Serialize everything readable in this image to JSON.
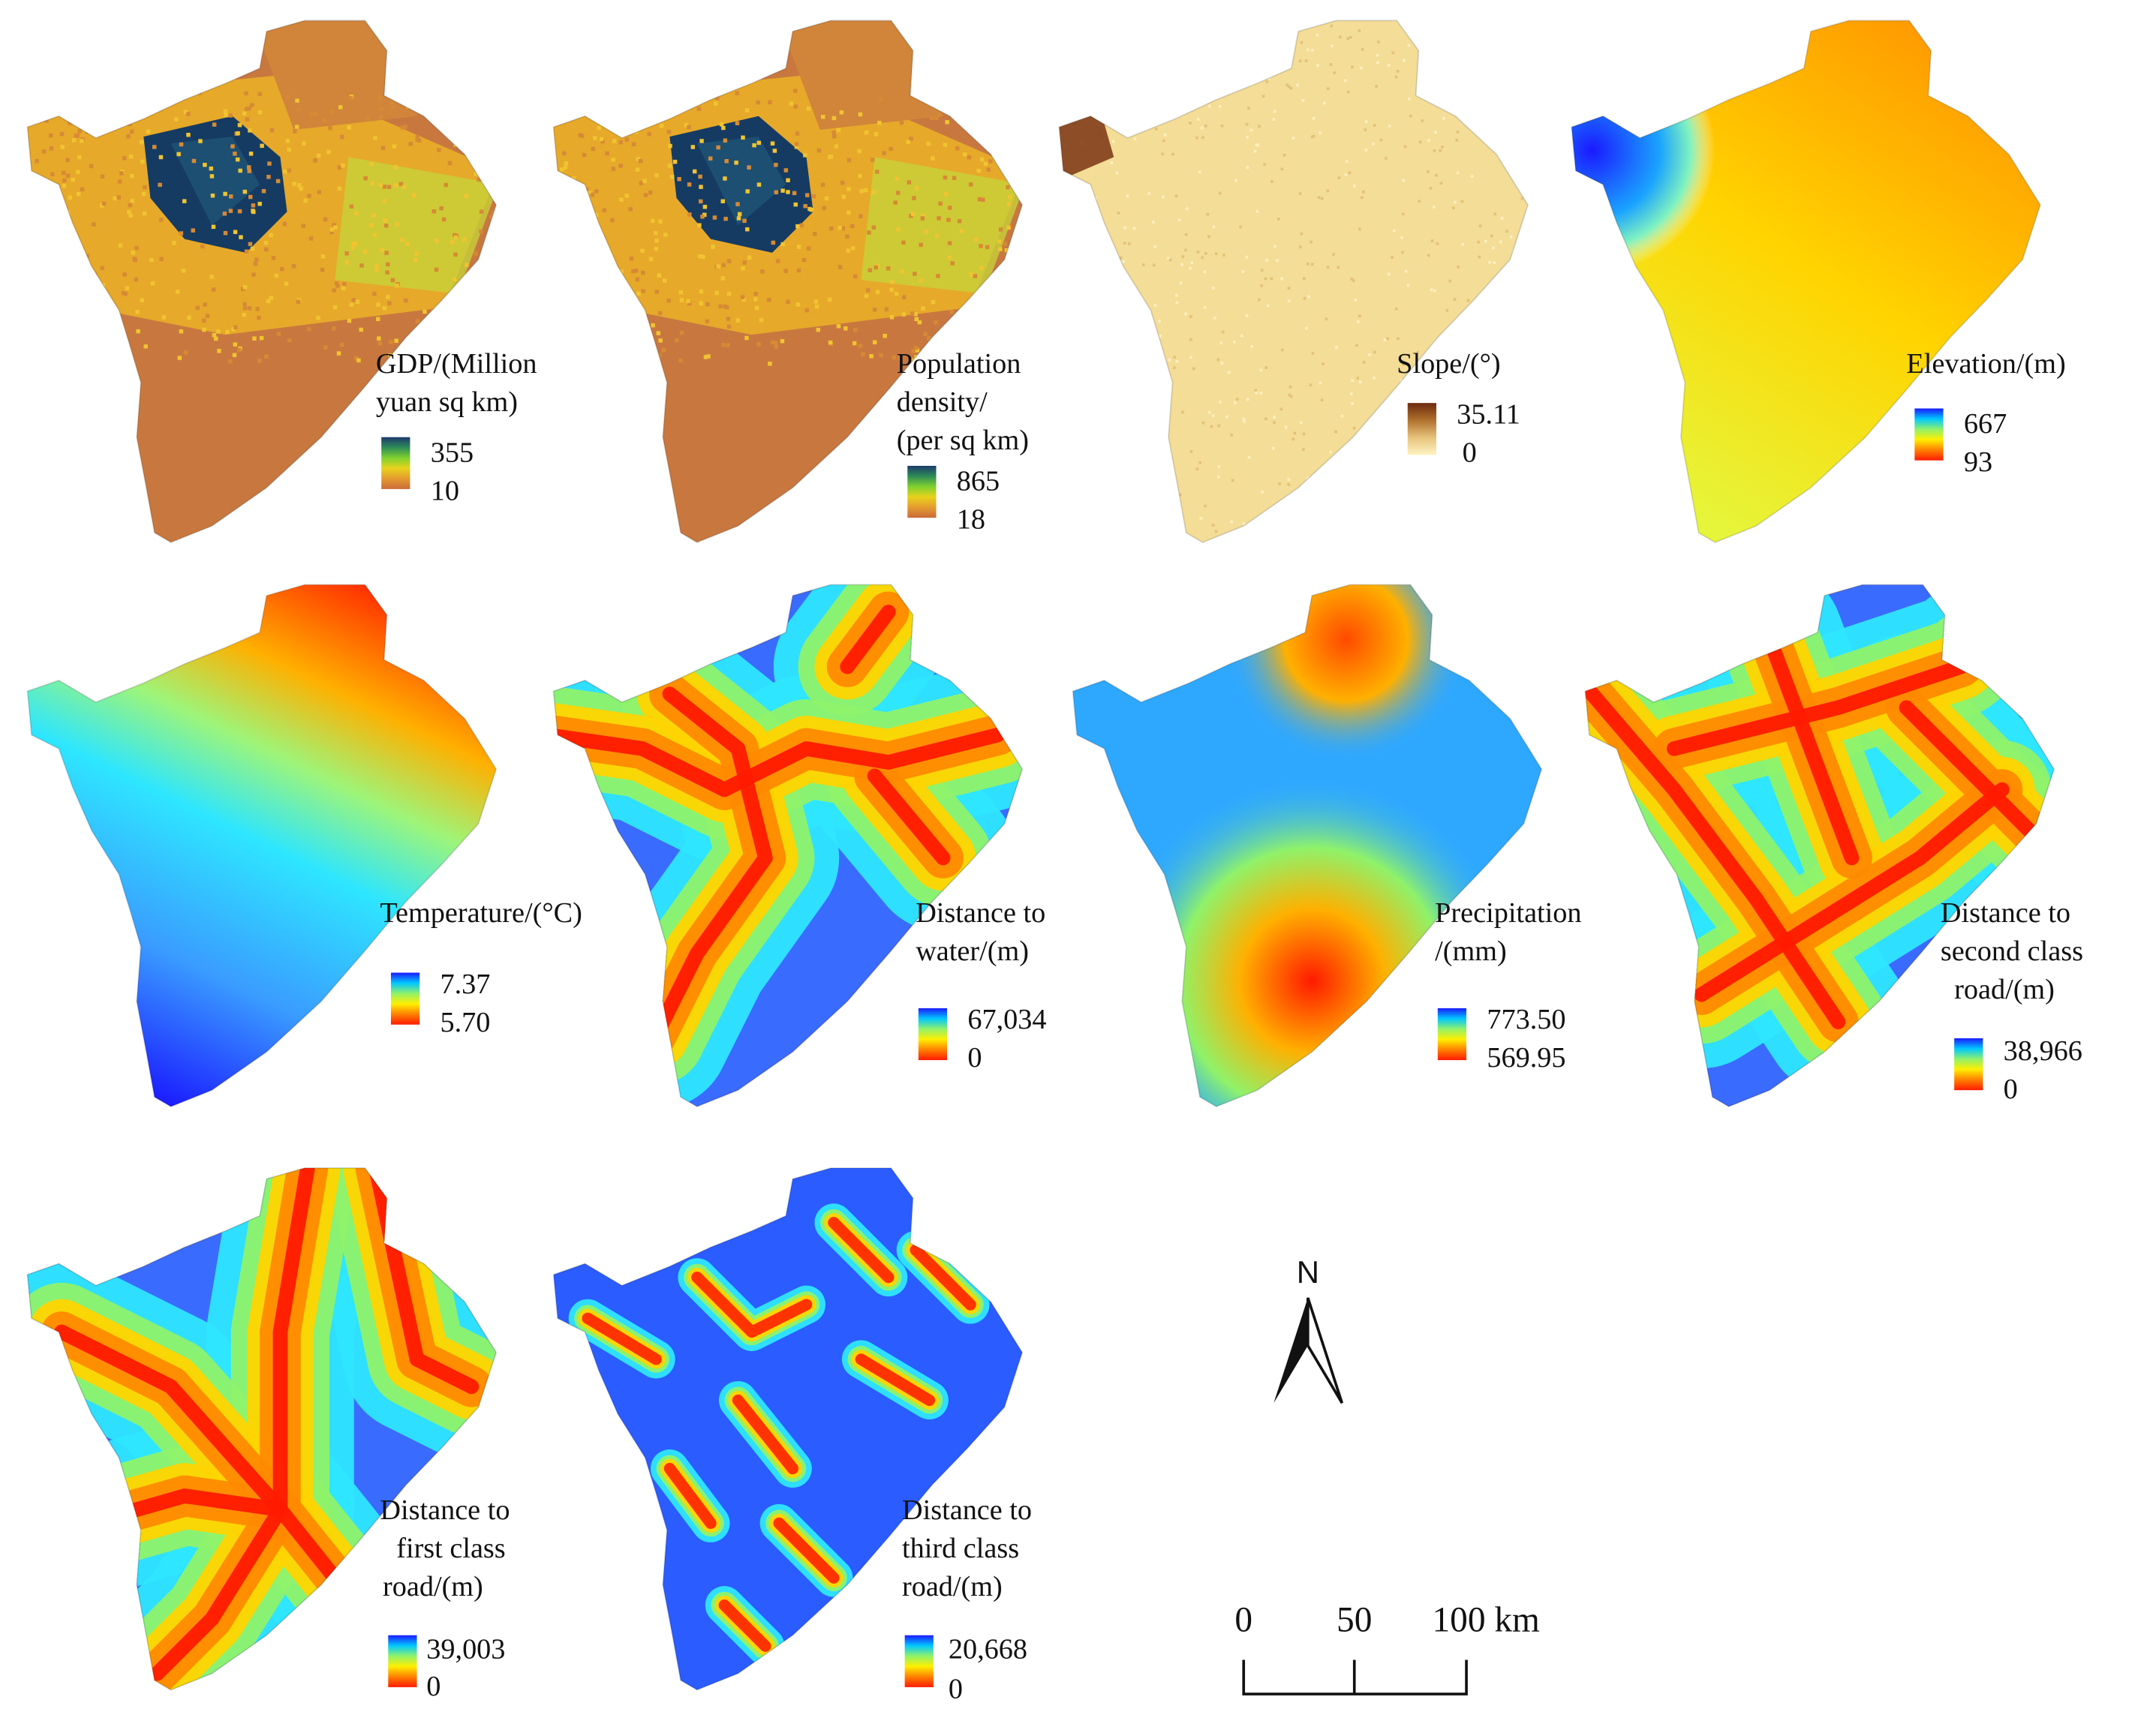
{
  "panels": [
    {
      "id": "gdp",
      "title_lines": [
        "GDP/(Million",
        "yuan sq km)"
      ],
      "max_label": "355",
      "min_label": "10",
      "ramp": [
        "#1b3a6b",
        "#2e8b57",
        "#7fd12f",
        "#e8d21c",
        "#e49b2f",
        "#c96a3a"
      ],
      "style": "raster"
    },
    {
      "id": "population",
      "title_lines": [
        "Population",
        "density/",
        "(per sq km)"
      ],
      "max_label": "865",
      "min_label": "18",
      "ramp": [
        "#1b3a6b",
        "#2e8b57",
        "#7fd12f",
        "#e8d21c",
        "#e49b2f",
        "#c96a3a"
      ],
      "style": "raster"
    },
    {
      "id": "slope",
      "title_lines": [
        "Slope/(°)"
      ],
      "max_label": "35.11",
      "min_label": "0",
      "ramp": [
        "#6b2a0e",
        "#b0712e",
        "#e7c37c",
        "#fff3c2"
      ],
      "style": "slope"
    },
    {
      "id": "elevation",
      "title_lines": [
        "Elevation/(m)"
      ],
      "max_label": "667",
      "min_label": "93",
      "ramp": [
        "#1a1aff",
        "#00c8ff",
        "#8ff26a",
        "#ffef00",
        "#ff8000",
        "#ff1a00"
      ],
      "style": "elevation"
    },
    {
      "id": "temperature",
      "title_lines": [
        "Temperature/(°C)"
      ],
      "max_label": "7.37",
      "min_label": "5.70",
      "ramp": [
        "#1a1aff",
        "#00c8ff",
        "#8ff26a",
        "#ffef00",
        "#ff8000",
        "#ff1a00"
      ],
      "style": "temperature"
    },
    {
      "id": "water",
      "title_lines": [
        "Distance to",
        "water/(m)"
      ],
      "max_label": "67,034",
      "min_label": "0",
      "ramp": [
        "#1a1aff",
        "#00c8ff",
        "#8ff26a",
        "#ffef00",
        "#ff8000",
        "#ff1a00"
      ],
      "style": "distance"
    },
    {
      "id": "precipitation",
      "title_lines": [
        "Precipitation",
        "/(mm)"
      ],
      "max_label": "773.50",
      "min_label": "569.95",
      "ramp": [
        "#1a1aff",
        "#00c8ff",
        "#8ff26a",
        "#ffef00",
        "#ff8000",
        "#ff1a00"
      ],
      "style": "precip"
    },
    {
      "id": "road2",
      "title_lines": [
        "Distance to",
        "second class",
        "road/(m)"
      ],
      "max_label": "38,966",
      "min_label": "0",
      "ramp": [
        "#1a1aff",
        "#00c8ff",
        "#8ff26a",
        "#ffef00",
        "#ff8000",
        "#ff1a00"
      ],
      "style": "road"
    },
    {
      "id": "road1",
      "title_lines": [
        "Distance to",
        "first class",
        "road/(m)"
      ],
      "max_label": "39,003",
      "min_label": "0",
      "ramp": [
        "#1a1aff",
        "#00c8ff",
        "#8ff26a",
        "#ffef00",
        "#ff8000",
        "#ff1a00"
      ],
      "style": "road"
    },
    {
      "id": "road3",
      "title_lines": [
        "Distance to",
        "third class",
        "road/(m)"
      ],
      "max_label": "20,668",
      "min_label": "0",
      "ramp": [
        "#1a1aff",
        "#00c8ff",
        "#8ff26a",
        "#ffef00",
        "#ff8000",
        "#ff1a00"
      ],
      "style": "road3"
    }
  ],
  "north_arrow": {
    "label": "N"
  },
  "scale_bar": {
    "labels": [
      "0",
      "50",
      "100 km"
    ]
  }
}
